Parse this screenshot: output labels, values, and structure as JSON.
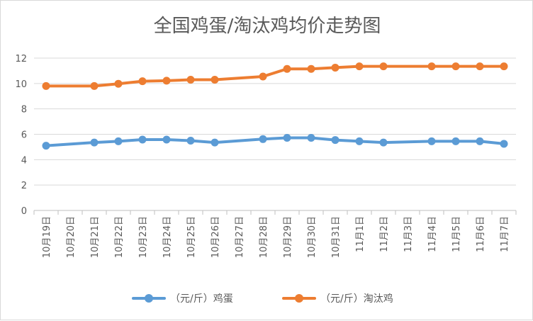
{
  "chart_data": {
    "type": "line",
    "title": "全国鸡蛋/淘汰鸡均价走势图",
    "xlabel": "",
    "ylabel": "",
    "categories": [
      "10月19日",
      "10月20日",
      "10月21日",
      "10月22日",
      "10月23日",
      "10月24日",
      "10月25日",
      "10月26日",
      "10月27日",
      "10月28日",
      "10月29日",
      "10月30日",
      "10月31日",
      "11月1日",
      "11月2日",
      "11月3日",
      "11月4日",
      "11月5日",
      "11月6日",
      "11月7日"
    ],
    "ylim": [
      0,
      12
    ],
    "yticks": [
      "0",
      "2",
      "4",
      "6",
      "8",
      "10",
      "12"
    ],
    "grid": true,
    "legend_position": "bottom",
    "series": [
      {
        "name": "（元/斤）鸡蛋",
        "color": "#5B9BD5",
        "values": [
          5.1,
          null,
          5.35,
          5.45,
          5.58,
          5.58,
          5.5,
          5.35,
          null,
          5.62,
          5.72,
          5.72,
          5.55,
          5.45,
          5.35,
          null,
          5.45,
          5.45,
          5.45,
          5.25
        ]
      },
      {
        "name": "（元/斤）淘汰鸡",
        "color": "#ED7D31",
        "values": [
          9.8,
          null,
          9.8,
          9.98,
          10.18,
          10.22,
          10.3,
          10.3,
          null,
          10.55,
          11.15,
          11.15,
          11.25,
          11.35,
          11.35,
          null,
          11.35,
          11.35,
          11.35,
          11.35
        ]
      }
    ]
  }
}
